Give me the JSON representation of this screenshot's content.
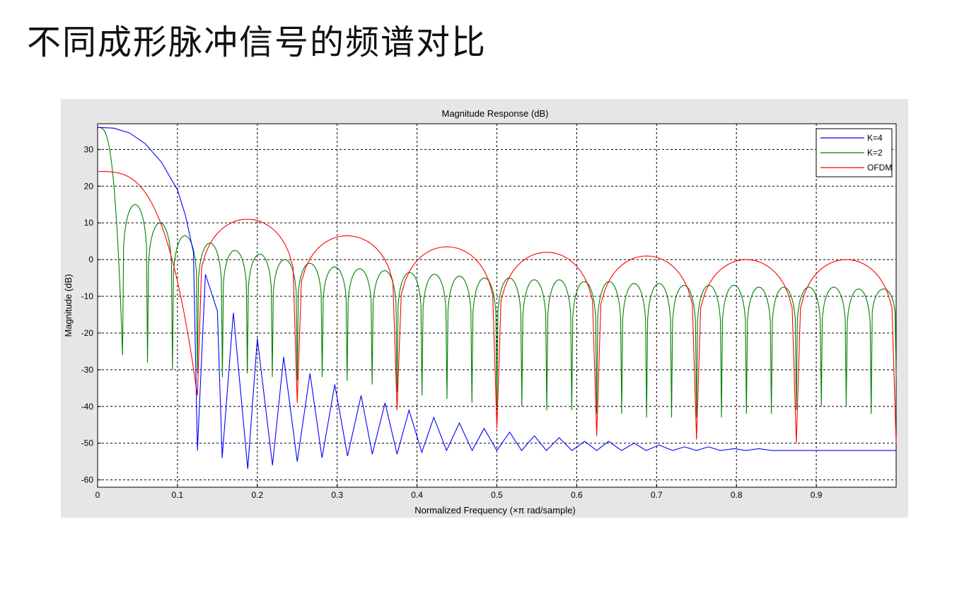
{
  "slide": {
    "title": "不同成形脉冲信号的频谱对比"
  },
  "chart_data": {
    "type": "line",
    "title": "Magnitude Response (dB)",
    "xlabel": "Normalized Frequency (×π rad/sample)",
    "ylabel": "Magnitude (dB)",
    "xlim": [
      0,
      1
    ],
    "ylim": [
      -62,
      37
    ],
    "xticks": [
      0,
      0.1,
      0.2,
      0.3,
      0.4,
      0.5,
      0.6,
      0.7,
      0.8,
      0.9
    ],
    "yticks": [
      30,
      20,
      10,
      0,
      -10,
      -20,
      -30,
      -40,
      -50,
      -60
    ],
    "grid": true,
    "legend": {
      "position": "top-right",
      "entries": [
        "K=4",
        "K=2",
        "OFDM"
      ]
    },
    "series": [
      {
        "name": "K=4",
        "color": "#0000ff",
        "x": [
          0,
          0.02,
          0.04,
          0.06,
          0.08,
          0.1,
          0.11,
          0.12,
          0.125,
          0.135,
          0.15,
          0.156,
          0.17,
          0.188,
          0.2,
          0.219,
          0.233,
          0.25,
          0.266,
          0.281,
          0.297,
          0.313,
          0.33,
          0.344,
          0.36,
          0.375,
          0.39,
          0.406,
          0.421,
          0.437,
          0.453,
          0.469,
          0.484,
          0.5,
          0.516,
          0.531,
          0.547,
          0.562,
          0.578,
          0.594,
          0.61,
          0.625,
          0.64,
          0.656,
          0.672,
          0.687,
          0.703,
          0.72,
          0.735,
          0.75,
          0.765,
          0.78,
          0.797,
          0.812,
          0.828,
          0.844,
          0.86,
          0.875,
          0.89,
          0.906,
          0.92,
          0.937,
          0.953,
          0.97,
          0.985,
          1.0
        ],
        "y": [
          36,
          35.8,
          34.5,
          31.5,
          26.5,
          19,
          12,
          2,
          -52,
          -4,
          -14,
          -54,
          -14.5,
          -57,
          -21.5,
          -56,
          -26.5,
          -55,
          -31,
          -54,
          -34,
          -53.5,
          -37,
          -53,
          -39,
          -53,
          -41,
          -52.5,
          -43,
          -52,
          -44.5,
          -52,
          -46,
          -52,
          -47,
          -52,
          -48,
          -52,
          -48.5,
          -52,
          -49.5,
          -52,
          -49.5,
          -52,
          -50,
          -52,
          -50.5,
          -52,
          -51,
          -52,
          -51,
          -52,
          -51.5,
          -52,
          -51.5,
          -52,
          -52,
          -52,
          -52,
          -52,
          -52,
          -52,
          -52,
          -52,
          -52,
          -52
        ]
      },
      {
        "name": "K=2",
        "color": "#008000",
        "peaks": [
          36,
          15,
          10,
          6.5,
          4.5,
          2.5,
          1.5,
          0,
          -1,
          -2,
          -2.5,
          -3,
          -3.5,
          -4,
          -4.5,
          -5,
          -5,
          -5.5,
          -5.5,
          -6,
          -6,
          -6.5,
          -6.5,
          -7,
          -7,
          -7,
          -7.5,
          -7.5,
          -7.5,
          -7.5,
          -8,
          -8
        ],
        "nulls": [
          -26,
          -28,
          -30,
          -31,
          -32,
          -31,
          -32,
          -33,
          -32,
          -33,
          -34,
          -36,
          -37,
          -38,
          -39,
          -40,
          -40,
          -41,
          -41,
          -42,
          -42,
          -43,
          -43,
          -43,
          -43,
          -42,
          -42,
          -41,
          -40,
          -40,
          -42,
          -32
        ]
      },
      {
        "name": "OFDM",
        "color": "#ff0000",
        "peaks": [
          24,
          11,
          6.5,
          3.5,
          2,
          1,
          0,
          0
        ],
        "nulls": [
          -37,
          -39,
          -41,
          -46,
          -48,
          -49,
          -50,
          -50
        ]
      }
    ]
  }
}
